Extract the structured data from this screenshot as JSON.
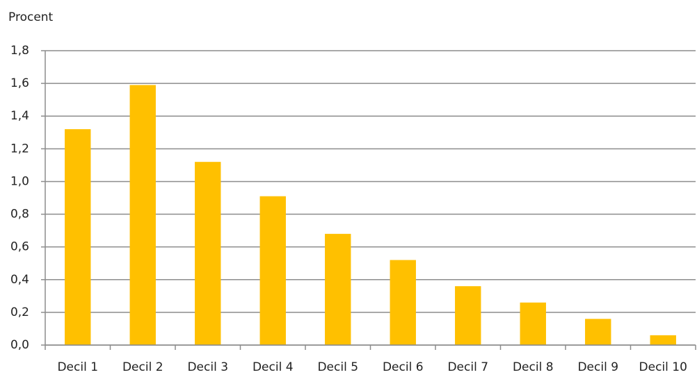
{
  "chart_data": {
    "type": "bar",
    "y_label": "Procent",
    "categories": [
      "Decil 1",
      "Decil 2",
      "Decil 3",
      "Decil 4",
      "Decil 5",
      "Decil 6",
      "Decil 7",
      "Decil 8",
      "Decil 9",
      "Decil 10"
    ],
    "values": [
      1.32,
      1.59,
      1.12,
      0.91,
      0.68,
      0.52,
      0.36,
      0.26,
      0.16,
      0.06
    ],
    "color": "#ffc000",
    "ylim": [
      0,
      1.8
    ],
    "yticks": [
      {
        "value": 0,
        "label": "0,0"
      },
      {
        "value": 0.2,
        "label": "0,2"
      },
      {
        "value": 0.4,
        "label": "0,4"
      },
      {
        "value": 0.6,
        "label": "0,6"
      },
      {
        "value": 0.8,
        "label": "0,8"
      },
      {
        "value": 1.0,
        "label": "1,0"
      },
      {
        "value": 1.2,
        "label": "1,2"
      },
      {
        "value": 1.4,
        "label": "1,4"
      },
      {
        "value": 1.6,
        "label": "1,6"
      },
      {
        "value": 1.8,
        "label": "1,8"
      }
    ],
    "grid": true
  }
}
